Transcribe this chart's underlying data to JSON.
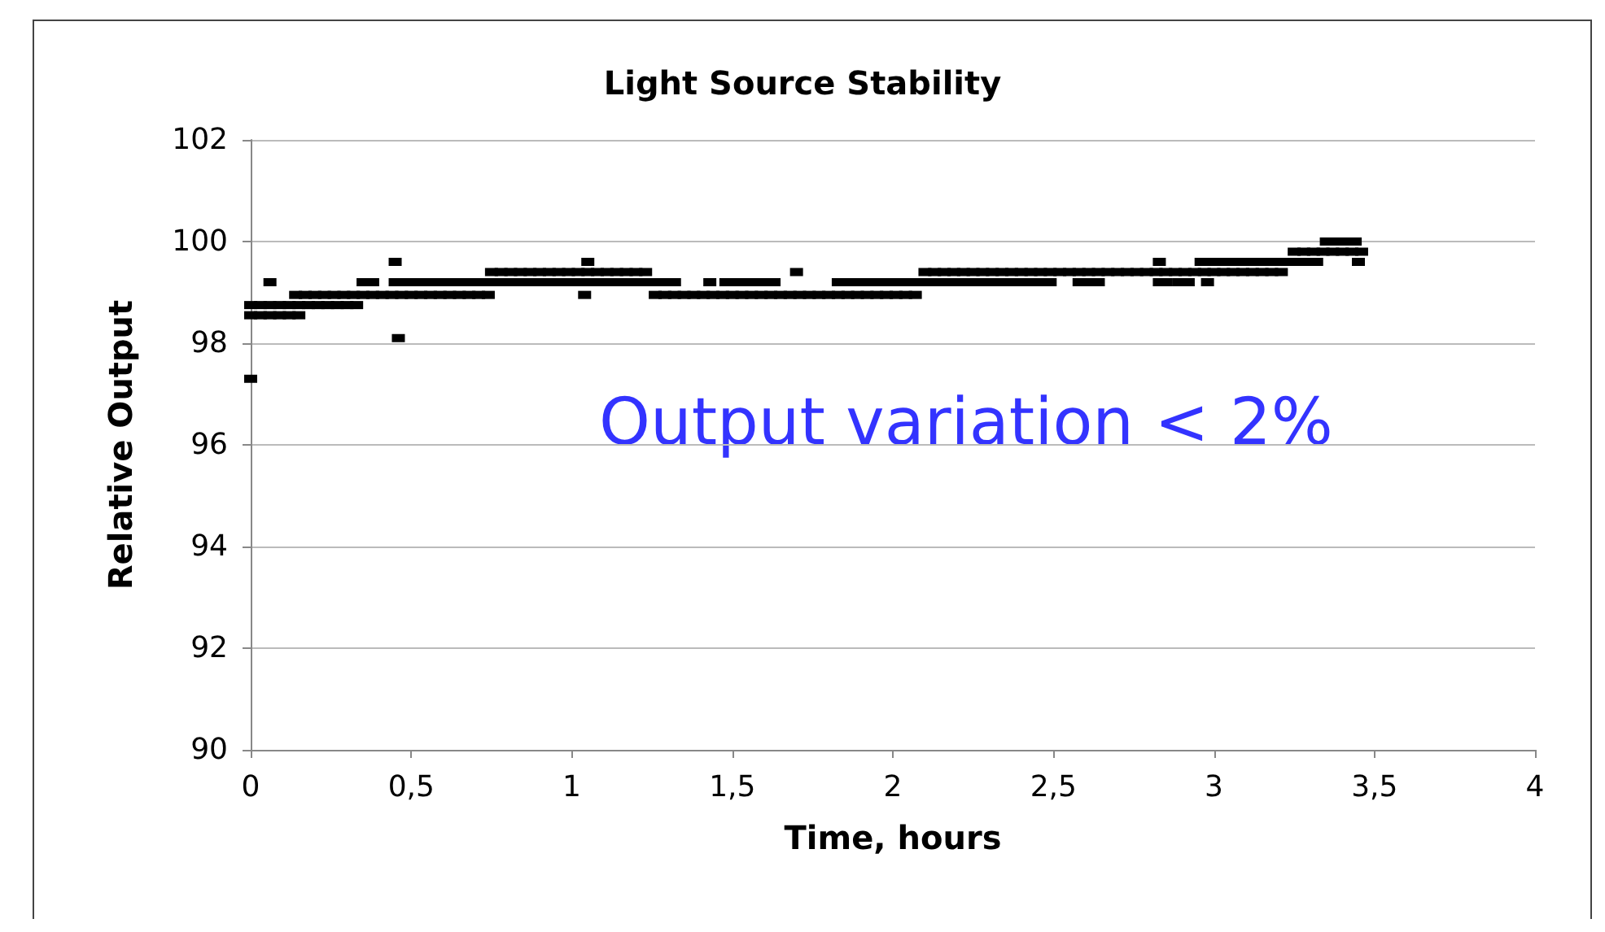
{
  "chart_data": {
    "type": "scatter",
    "title": "Light Source Stability",
    "xlabel": "Time, hours",
    "ylabel": "Relative Output",
    "annotations": [
      "Output variation < 2%"
    ],
    "marker": "square",
    "grid": "y",
    "xlim": [
      0,
      4
    ],
    "xticks": [
      0,
      {
        "value": 0.5,
        "label": "0,5"
      },
      1,
      {
        "value": 1.5,
        "label": "1,5"
      },
      2,
      {
        "value": 2.5,
        "label": "2,5"
      },
      3,
      {
        "value": 3.5,
        "label": "3,5"
      },
      4
    ],
    "ylim": [
      90,
      102
    ],
    "yticks": [
      90,
      92,
      94,
      96,
      98,
      100,
      102
    ],
    "series": [
      {
        "color": "#000000",
        "x": [
          0,
          0.03,
          0.06,
          0.09,
          0.12,
          0.15
        ],
        "values": [
          98.55,
          98.55,
          98.55,
          98.55,
          98.55,
          98.55
        ]
      },
      {
        "color": "#000000",
        "x": [
          0,
          0.03,
          0.06,
          0.09,
          0.12,
          0.15,
          0.18,
          0.21,
          0.24,
          0.27,
          0.3,
          0.33
        ],
        "values": [
          98.75,
          98.75,
          98.75,
          98.75,
          98.75,
          98.75,
          98.75,
          98.75,
          98.75,
          98.75,
          98.75,
          98.75
        ]
      },
      {
        "color": "#000000",
        "x": [
          0.14,
          0.17,
          0.2,
          0.23,
          0.26,
          0.29,
          0.32,
          0.35,
          0.38,
          0.41,
          0.44,
          0.47,
          0.5,
          0.53,
          0.56,
          0.59,
          0.62,
          0.65,
          0.68,
          0.71,
          0.74,
          1.04,
          1.26,
          1.29,
          1.32,
          1.35,
          1.38,
          1.41,
          1.44,
          1.47,
          1.5,
          1.53,
          1.56,
          1.59,
          1.62,
          1.65,
          1.68,
          1.71,
          1.74,
          1.77,
          1.8,
          1.83,
          1.86,
          1.89,
          1.92,
          1.95,
          1.98,
          2.01,
          2.04,
          2.07
        ],
        "values": [
          98.95,
          98.95,
          98.95,
          98.95,
          98.95,
          98.95,
          98.95,
          98.95,
          98.95,
          98.95,
          98.95,
          98.95,
          98.95,
          98.95,
          98.95,
          98.95,
          98.95,
          98.95,
          98.95,
          98.95,
          98.95,
          98.95,
          98.95,
          98.95,
          98.95,
          98.95,
          98.95,
          98.95,
          98.95,
          98.95,
          98.95,
          98.95,
          98.95,
          98.95,
          98.95,
          98.95,
          98.95,
          98.95,
          98.95,
          98.95,
          98.95,
          98.95,
          98.95,
          98.95,
          98.95,
          98.95,
          98.95,
          98.95,
          98.95,
          98.95
        ]
      },
      {
        "color": "#000000",
        "x": [
          0.06,
          0.35,
          0.38,
          0.45,
          0.48,
          0.51,
          0.54,
          0.57,
          0.6,
          0.63,
          0.66,
          0.69,
          0.72,
          0.75,
          0.78,
          0.81,
          0.84,
          0.87,
          0.9,
          0.93,
          0.96,
          0.99,
          1.02,
          1.05,
          1.08,
          1.11,
          1.14,
          1.17,
          1.2,
          1.23,
          1.26,
          1.29,
          1.32,
          1.43,
          1.48,
          1.51,
          1.54,
          1.57,
          1.6,
          1.63,
          1.83,
          1.86,
          1.89,
          1.92,
          1.95,
          1.98,
          2.01,
          2.04,
          2.07,
          2.1,
          2.13,
          2.16,
          2.19,
          2.22,
          2.25,
          2.28,
          2.31,
          2.34,
          2.37,
          2.4,
          2.43,
          2.46,
          2.49,
          2.58,
          2.61,
          2.64,
          2.83,
          2.85,
          2.89,
          2.92,
          2.98
        ],
        "values": [
          99.2,
          99.2,
          99.2,
          99.2,
          99.2,
          99.2,
          99.2,
          99.2,
          99.2,
          99.2,
          99.2,
          99.2,
          99.2,
          99.2,
          99.2,
          99.2,
          99.2,
          99.2,
          99.2,
          99.2,
          99.2,
          99.2,
          99.2,
          99.2,
          99.2,
          99.2,
          99.2,
          99.2,
          99.2,
          99.2,
          99.2,
          99.2,
          99.2,
          99.2,
          99.2,
          99.2,
          99.2,
          99.2,
          99.2,
          99.2,
          99.2,
          99.2,
          99.2,
          99.2,
          99.2,
          99.2,
          99.2,
          99.2,
          99.2,
          99.2,
          99.2,
          99.2,
          99.2,
          99.2,
          99.2,
          99.2,
          99.2,
          99.2,
          99.2,
          99.2,
          99.2,
          99.2,
          99.2,
          99.2,
          99.2,
          99.2,
          99.2,
          99.2,
          99.2,
          99.2,
          99.2
        ]
      },
      {
        "color": "#000000",
        "x": [
          0.75,
          0.78,
          0.81,
          0.84,
          0.87,
          0.9,
          0.93,
          0.96,
          0.99,
          1.02,
          1.05,
          1.08,
          1.11,
          1.14,
          1.17,
          1.2,
          1.23,
          1.7,
          2.1,
          2.13,
          2.16,
          2.19,
          2.22,
          2.25,
          2.28,
          2.31,
          2.34,
          2.37,
          2.4,
          2.43,
          2.46,
          2.49,
          2.52,
          2.55,
          2.58,
          2.61,
          2.64,
          2.67,
          2.7,
          2.73,
          2.76,
          2.79,
          2.82,
          2.85,
          2.88,
          2.91,
          2.94,
          2.97,
          3,
          3.03,
          3.06,
          3.09,
          3.12,
          3.15,
          3.18,
          3.21
        ],
        "values": [
          99.4,
          99.4,
          99.4,
          99.4,
          99.4,
          99.4,
          99.4,
          99.4,
          99.4,
          99.4,
          99.4,
          99.4,
          99.4,
          99.4,
          99.4,
          99.4,
          99.4,
          99.4,
          99.4,
          99.4,
          99.4,
          99.4,
          99.4,
          99.4,
          99.4,
          99.4,
          99.4,
          99.4,
          99.4,
          99.4,
          99.4,
          99.4,
          99.4,
          99.4,
          99.4,
          99.4,
          99.4,
          99.4,
          99.4,
          99.4,
          99.4,
          99.4,
          99.4,
          99.4,
          99.4,
          99.4,
          99.4,
          99.4,
          99.4,
          99.4,
          99.4,
          99.4,
          99.4,
          99.4,
          99.4,
          99.4
        ]
      },
      {
        "color": "#000000",
        "x": [
          0.45,
          1.05,
          2.83,
          2.96,
          2.99,
          3.02,
          3.05,
          3.08,
          3.11,
          3.14,
          3.17,
          3.2,
          3.23,
          3.26,
          3.29,
          3.32,
          3.45
        ],
        "values": [
          99.6,
          99.6,
          99.6,
          99.6,
          99.6,
          99.6,
          99.6,
          99.6,
          99.6,
          99.6,
          99.6,
          99.6,
          99.6,
          99.6,
          99.6,
          99.6,
          99.6
        ]
      },
      {
        "color": "#000000",
        "x": [
          3.25,
          3.28,
          3.31,
          3.34,
          3.37,
          3.4,
          3.43,
          3.46
        ],
        "values": [
          99.8,
          99.8,
          99.8,
          99.8,
          99.8,
          99.8,
          99.8,
          99.8
        ]
      },
      {
        "color": "#000000",
        "x": [
          3.35,
          3.38,
          3.41,
          3.44
        ],
        "values": [
          100,
          100,
          100,
          100
        ]
      },
      {
        "color": "#000000",
        "x": [
          0,
          0.46
        ],
        "values": [
          97.3,
          98.1
        ]
      }
    ]
  }
}
